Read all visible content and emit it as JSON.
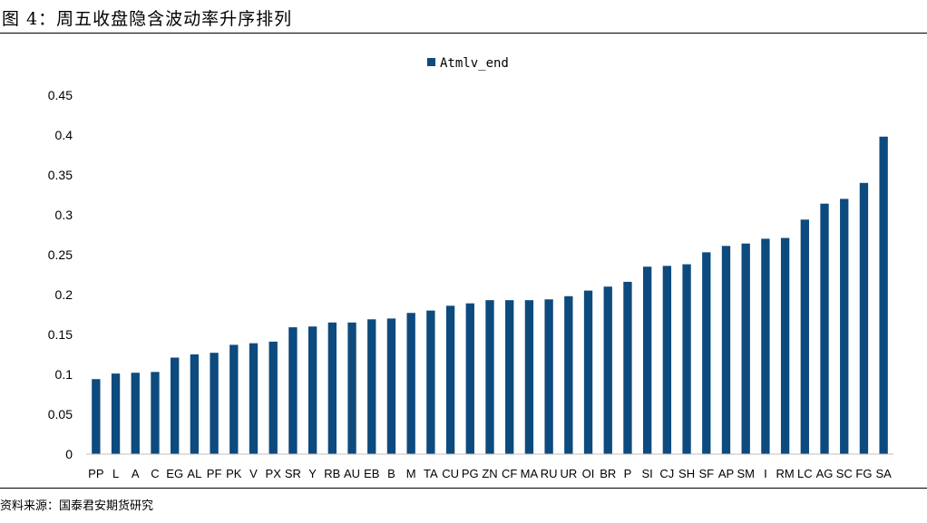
{
  "header": {
    "title": "图 4：周五收盘隐含波动率升序排列"
  },
  "footer": {
    "source": "资料来源：国泰君安期货研究"
  },
  "chart_data": {
    "type": "bar",
    "title": "",
    "xlabel": "",
    "ylabel": "",
    "ylim": [
      0,
      0.45
    ],
    "yticks": [
      0,
      0.05,
      0.1,
      0.15,
      0.2,
      0.25,
      0.3,
      0.35,
      0.4,
      0.45
    ],
    "ytick_labels": [
      "0",
      "0.05",
      "0.1",
      "0.15",
      "0.2",
      "0.25",
      "0.3",
      "0.35",
      "0.4",
      "0.45"
    ],
    "grid": false,
    "legend_position": "top-center",
    "bar_color": "#0d4a7e",
    "categories": [
      "PP",
      "L",
      "A",
      "C",
      "EG",
      "AL",
      "PF",
      "PK",
      "V",
      "PX",
      "SR",
      "Y",
      "RB",
      "AU",
      "EB",
      "B",
      "M",
      "TA",
      "CU",
      "PG",
      "ZN",
      "CF",
      "MA",
      "RU",
      "UR",
      "OI",
      "BR",
      "P",
      "SI",
      "CJ",
      "SH",
      "SF",
      "AP",
      "SM",
      "I",
      "RM",
      "LC",
      "AG",
      "SC",
      "FG",
      "SA"
    ],
    "series": [
      {
        "name": "Atmlv_end",
        "values": [
          0.094,
          0.101,
          0.102,
          0.103,
          0.121,
          0.125,
          0.127,
          0.137,
          0.139,
          0.141,
          0.159,
          0.16,
          0.165,
          0.165,
          0.169,
          0.17,
          0.177,
          0.18,
          0.186,
          0.189,
          0.193,
          0.193,
          0.193,
          0.194,
          0.198,
          0.205,
          0.21,
          0.216,
          0.235,
          0.236,
          0.238,
          0.253,
          0.261,
          0.264,
          0.27,
          0.271,
          0.294,
          0.314,
          0.32,
          0.34,
          0.398
        ]
      }
    ]
  }
}
